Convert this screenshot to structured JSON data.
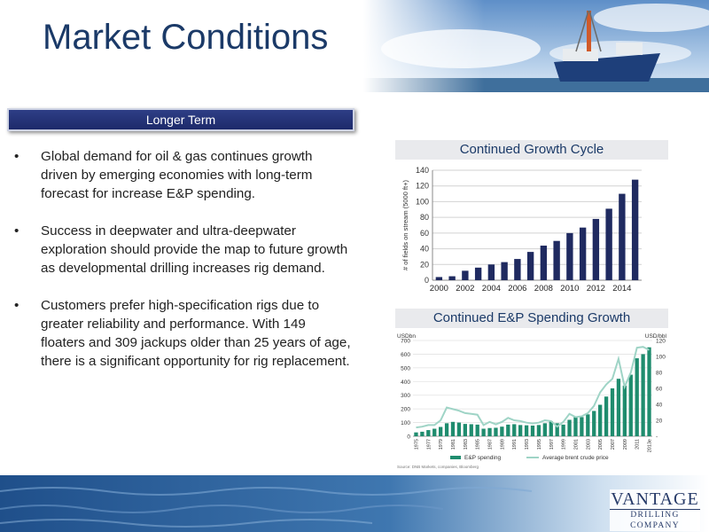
{
  "page": {
    "title": "Market Conditions",
    "section_label": "Longer Term",
    "bullets": [
      "Global demand for oil & gas continues growth driven by emerging economies with long-term forecast for increase E&P spending.",
      "Success in deepwater and ultra-deepwater exploration should provide the map to future growth as developmental drilling increases rig demand.",
      "Customers prefer high-specification rigs due to greater reliability and performance.  With 149 floaters and 309 jackups older than 25 years of age, there is a significant opportunity for rig replacement."
    ],
    "bullet_marker": "•",
    "logo": {
      "name": "VANTAGE",
      "subtitle": "DRILLING COMPANY"
    }
  },
  "colors": {
    "title": "#1b3a68",
    "navy_bar": "#1d2a6a",
    "bar_navy": "#1f2a60",
    "spend_green": "#1f8c6e",
    "brent_line": "#9fd4c6"
  },
  "chart_data": [
    {
      "type": "bar",
      "title": "Continued Growth Cycle",
      "ylabel": "# of fields on stream (5000 ft+)",
      "xlabel": "",
      "ylim": [
        0,
        140
      ],
      "yticks": [
        0,
        20,
        40,
        60,
        80,
        100,
        120,
        140
      ],
      "x_tick_labels": [
        "2000",
        "2002",
        "2004",
        "2006",
        "2008",
        "2010",
        "2012",
        "2014"
      ],
      "categories": [
        "2000",
        "2001",
        "2002",
        "2003",
        "2004",
        "2005",
        "2006",
        "2007",
        "2008",
        "2009",
        "2010",
        "2011",
        "2012",
        "2013",
        "2014",
        "2015"
      ],
      "values": [
        4,
        5,
        12,
        16,
        20,
        23,
        27,
        36,
        44,
        50,
        60,
        67,
        78,
        91,
        110,
        128
      ],
      "grid": true,
      "color": "#1f2a60"
    },
    {
      "type": "bar",
      "title": "Continued E&P Spending Growth",
      "left_axis_label": "USDbn",
      "right_axis_label": "USD/bbl",
      "ylim_left": [
        0,
        700
      ],
      "ylim_right": [
        0,
        120
      ],
      "yticks_left": [
        0,
        100,
        200,
        300,
        400,
        500,
        600,
        700
      ],
      "yticks_right": [
        "-",
        20,
        40,
        60,
        80,
        100,
        120
      ],
      "x_tick_labels": [
        "1975",
        "1977",
        "1979",
        "1981",
        "1983",
        "1985",
        "1987",
        "1989",
        "1991",
        "1993",
        "1995",
        "1997",
        "1999",
        "2001",
        "2003",
        "2005",
        "2007",
        "2009",
        "2011",
        "2013e"
      ],
      "categories": [
        "1975",
        "1976",
        "1977",
        "1978",
        "1979",
        "1980",
        "1981",
        "1982",
        "1983",
        "1984",
        "1985",
        "1986",
        "1987",
        "1988",
        "1989",
        "1990",
        "1991",
        "1992",
        "1993",
        "1994",
        "1995",
        "1996",
        "1997",
        "1998",
        "1999",
        "2000",
        "2001",
        "2002",
        "2003",
        "2004",
        "2005",
        "2006",
        "2007",
        "2008",
        "2009",
        "2010",
        "2011",
        "2012",
        "2013e"
      ],
      "series": [
        {
          "name": "E&P spending",
          "axis": "left",
          "values": [
            28,
            33,
            45,
            55,
            68,
            95,
            105,
            100,
            90,
            88,
            85,
            55,
            60,
            62,
            70,
            85,
            88,
            82,
            80,
            78,
            82,
            95,
            110,
            95,
            85,
            120,
            140,
            140,
            160,
            185,
            230,
            290,
            350,
            420,
            370,
            450,
            570,
            600,
            650
          ],
          "color": "#1f8c6e"
        },
        {
          "name": "Average brent crude price",
          "axis": "right",
          "values": [
            11,
            12,
            14,
            14,
            20,
            36,
            34,
            32,
            29,
            28,
            27,
            14,
            18,
            15,
            18,
            23,
            20,
            19,
            17,
            16,
            17,
            20,
            19,
            12,
            18,
            28,
            24,
            25,
            29,
            38,
            55,
            65,
            72,
            97,
            62,
            80,
            111,
            112,
            108
          ],
          "color": "#9fd4c6"
        }
      ],
      "legend": {
        "placement": "bottom"
      },
      "source": "Source: DNB Markets, companies, Bloomberg"
    }
  ]
}
